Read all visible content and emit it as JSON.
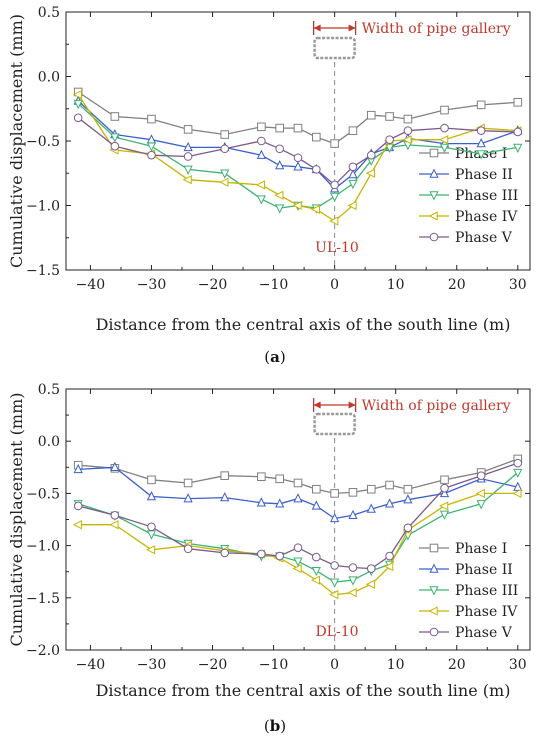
{
  "annotation_label": "Width of pipe gallery",
  "chart_data": [
    {
      "type": "line",
      "caption": "a",
      "tag": "UL-10",
      "xlabel": "Distance from the central axis of the south line (m)",
      "ylabel": "Cumulative displacement (mm)",
      "xlim": [
        -44,
        32
      ],
      "ylim": [
        -1.5,
        0.5
      ],
      "xticks": [
        -40,
        -30,
        -20,
        -10,
        0,
        10,
        20,
        30
      ],
      "yticks": [
        -1.5,
        -1.0,
        -0.5,
        0.0,
        0.5
      ],
      "ytick_labels": [
        "−1.5",
        "−1.0",
        "−0.5",
        "0.0",
        "0.5"
      ],
      "xtick_labels": [
        "−40",
        "−30",
        "−20",
        "−10",
        "0",
        "10",
        "20",
        "30"
      ],
      "legend_position": "bottom-right",
      "series": [
        {
          "name": "Phase I",
          "color": "#808080",
          "marker": "square",
          "x": [
            -42,
            -36,
            -30,
            -24,
            -18,
            -12,
            -9,
            -6,
            -3,
            0,
            3,
            6,
            9,
            12,
            18,
            24,
            30
          ],
          "y": [
            -0.12,
            -0.31,
            -0.33,
            -0.41,
            -0.45,
            -0.39,
            -0.4,
            -0.4,
            -0.47,
            -0.52,
            -0.42,
            -0.3,
            -0.31,
            -0.33,
            -0.26,
            -0.22,
            -0.2
          ]
        },
        {
          "name": "Phase II",
          "color": "#3a5fcd",
          "marker": "triangle-up",
          "x": [
            -42,
            -36,
            -30,
            -24,
            -18,
            -12,
            -9,
            -6,
            -3,
            0,
            3,
            6,
            9,
            12,
            18,
            24,
            30
          ],
          "y": [
            -0.19,
            -0.45,
            -0.49,
            -0.55,
            -0.55,
            -0.61,
            -0.69,
            -0.7,
            -0.72,
            -0.87,
            -0.76,
            -0.6,
            -0.55,
            -0.48,
            -0.52,
            -0.52,
            -0.42
          ]
        },
        {
          "name": "Phase III",
          "color": "#3cb371",
          "marker": "triangle-down",
          "x": [
            -42,
            -36,
            -30,
            -24,
            -18,
            -12,
            -9,
            -6,
            -3,
            0,
            3,
            6,
            9,
            12,
            18,
            24,
            30
          ],
          "y": [
            -0.21,
            -0.47,
            -0.54,
            -0.72,
            -0.75,
            -0.95,
            -1.02,
            -1.0,
            -1.02,
            -0.93,
            -0.83,
            -0.65,
            -0.55,
            -0.53,
            -0.55,
            -0.6,
            -0.55
          ]
        },
        {
          "name": "Phase IV",
          "color": "#c8b400",
          "marker": "triangle-left",
          "x": [
            -42,
            -36,
            -30,
            -24,
            -18,
            -12,
            -9,
            -6,
            -3,
            0,
            3,
            6,
            9,
            12,
            18,
            24,
            30
          ],
          "y": [
            -0.14,
            -0.57,
            -0.6,
            -0.8,
            -0.82,
            -0.84,
            -0.92,
            -1.0,
            -1.03,
            -1.12,
            -1.0,
            -0.75,
            -0.5,
            -0.49,
            -0.49,
            -0.4,
            -0.42
          ]
        },
        {
          "name": "Phase V",
          "color": "#7b5a8c",
          "marker": "circle",
          "x": [
            -42,
            -36,
            -30,
            -24,
            -18,
            -12,
            -9,
            -6,
            -3,
            0,
            3,
            6,
            9,
            12,
            18,
            24,
            30
          ],
          "y": [
            -0.32,
            -0.54,
            -0.61,
            -0.62,
            -0.56,
            -0.5,
            -0.56,
            -0.63,
            -0.72,
            -0.84,
            -0.7,
            -0.61,
            -0.49,
            -0.42,
            -0.4,
            -0.42,
            -0.43
          ]
        }
      ]
    },
    {
      "type": "line",
      "caption": "b",
      "tag": "DL-10",
      "xlabel": "Distance from the central axis of the south line (m)",
      "ylabel": "Cumulative displacement (mm)",
      "xlim": [
        -44,
        32
      ],
      "ylim": [
        -2.0,
        0.5
      ],
      "xticks": [
        -40,
        -30,
        -20,
        -10,
        0,
        10,
        20,
        30
      ],
      "yticks": [
        -2.0,
        -1.5,
        -1.0,
        -0.5,
        0.0,
        0.5
      ],
      "ytick_labels": [
        "−2.0",
        "−1.5",
        "−1.0",
        "−0.5",
        "0.0",
        "0.5"
      ],
      "xtick_labels": [
        "−40",
        "−30",
        "−20",
        "−10",
        "0",
        "10",
        "20",
        "30"
      ],
      "legend_position": "bottom-right",
      "series": [
        {
          "name": "Phase I",
          "color": "#808080",
          "marker": "square",
          "x": [
            -42,
            -36,
            -30,
            -24,
            -18,
            -12,
            -9,
            -6,
            -3,
            0,
            3,
            6,
            9,
            12,
            18,
            24,
            30
          ],
          "y": [
            -0.23,
            -0.26,
            -0.37,
            -0.4,
            -0.33,
            -0.34,
            -0.36,
            -0.4,
            -0.46,
            -0.5,
            -0.49,
            -0.46,
            -0.42,
            -0.46,
            -0.37,
            -0.3,
            -0.17
          ]
        },
        {
          "name": "Phase II",
          "color": "#3a5fcd",
          "marker": "triangle-up",
          "x": [
            -42,
            -36,
            -30,
            -24,
            -18,
            -12,
            -9,
            -6,
            -3,
            0,
            3,
            6,
            9,
            12,
            18,
            24,
            30
          ],
          "y": [
            -0.27,
            -0.25,
            -0.53,
            -0.55,
            -0.54,
            -0.59,
            -0.6,
            -0.55,
            -0.62,
            -0.74,
            -0.71,
            -0.65,
            -0.6,
            -0.56,
            -0.5,
            -0.36,
            -0.44
          ]
        },
        {
          "name": "Phase III",
          "color": "#3cb371",
          "marker": "triangle-down",
          "x": [
            -42,
            -36,
            -30,
            -24,
            -18,
            -12,
            -9,
            -6,
            -3,
            0,
            3,
            6,
            9,
            12,
            18,
            24,
            30
          ],
          "y": [
            -0.6,
            -0.71,
            -0.89,
            -0.98,
            -1.03,
            -1.1,
            -1.1,
            -1.15,
            -1.24,
            -1.35,
            -1.33,
            -1.24,
            -1.18,
            -0.9,
            -0.7,
            -0.6,
            -0.3
          ]
        },
        {
          "name": "Phase IV",
          "color": "#c8b400",
          "marker": "triangle-left",
          "x": [
            -42,
            -36,
            -30,
            -24,
            -18,
            -12,
            -9,
            -6,
            -3,
            0,
            3,
            6,
            9,
            12,
            18,
            24,
            30
          ],
          "y": [
            -0.8,
            -0.8,
            -1.04,
            -1.0,
            -1.05,
            -1.08,
            -1.12,
            -1.22,
            -1.33,
            -1.47,
            -1.45,
            -1.37,
            -1.2,
            -0.85,
            -0.62,
            -0.5,
            -0.5
          ]
        },
        {
          "name": "Phase V",
          "color": "#7b5a8c",
          "marker": "circle",
          "x": [
            -42,
            -36,
            -30,
            -24,
            -18,
            -12,
            -9,
            -6,
            -3,
            0,
            3,
            6,
            9,
            12,
            18,
            24,
            30
          ],
          "y": [
            -0.62,
            -0.71,
            -0.82,
            -1.03,
            -1.07,
            -1.08,
            -1.1,
            -1.02,
            -1.11,
            -1.19,
            -1.21,
            -1.22,
            -1.1,
            -0.83,
            -0.45,
            -0.33,
            -0.21
          ]
        }
      ]
    }
  ]
}
